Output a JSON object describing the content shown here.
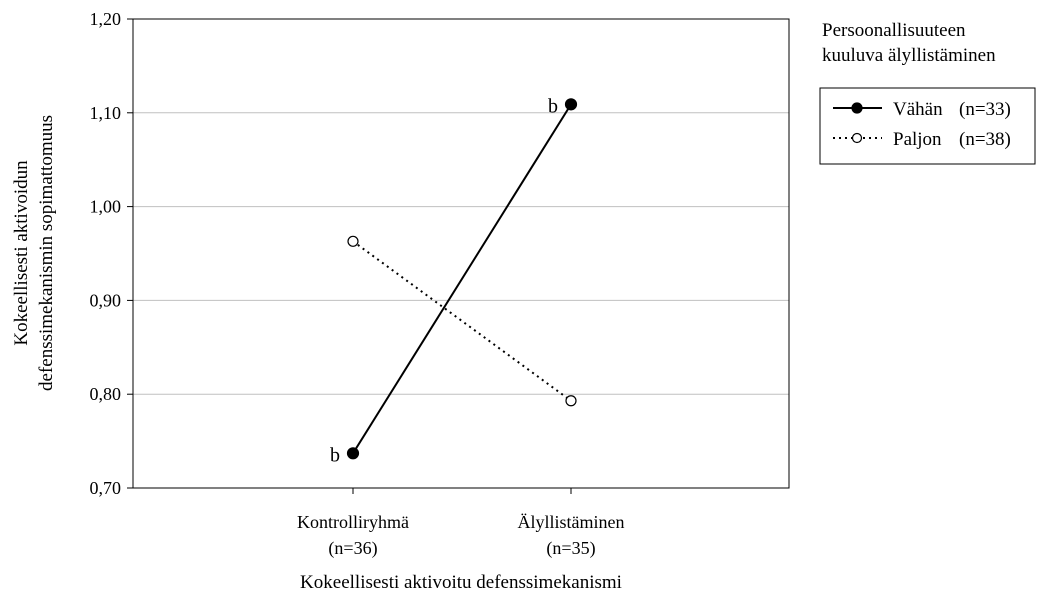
{
  "chart_data": {
    "type": "line",
    "title": "",
    "xlabel": "Kokeellisesti aktivoitu defenssimekanismi",
    "ylabel_lines": [
      "Kokeellisesti aktivoidun",
      "defenssimekanismin sopimattomuus"
    ],
    "ylim": [
      0.7,
      1.2
    ],
    "yticks": [
      "0,70",
      "0,80",
      "0,90",
      "1,00",
      "1,10",
      "1,20"
    ],
    "ytick_values": [
      0.7,
      0.8,
      0.9,
      1.0,
      1.1,
      1.2
    ],
    "categories": [
      {
        "label": "Kontrolliryhmä",
        "sublabel": "(n=36)"
      },
      {
        "label": "Älyllistäminen",
        "sublabel": "(n=35)"
      }
    ],
    "series": [
      {
        "name": "Vähän",
        "n_label": "(n=33)",
        "values": [
          0.737,
          1.109
        ],
        "style": "solid",
        "marker": "filled-circle",
        "annotations": [
          "b",
          "b"
        ]
      },
      {
        "name": "Paljon",
        "n_label": "(n=38)",
        "values": [
          0.963,
          0.793
        ],
        "style": "dotted",
        "marker": "open-circle",
        "annotations": [
          "",
          ""
        ]
      }
    ],
    "legend": {
      "title_lines": [
        "Persoonallisuuteen",
        "kuuluva älyllistäminen"
      ],
      "placement": "right"
    },
    "grid": "horizontal",
    "colors": {
      "line": "#000000",
      "grid": "#c0c0c0",
      "background": "#ffffff"
    }
  }
}
